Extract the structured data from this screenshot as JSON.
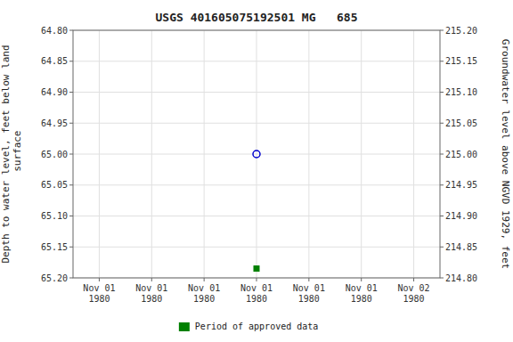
{
  "chart_data": {
    "type": "scatter",
    "title": "USGS 401605075192501 MG   685",
    "ylabel": "Depth to water level, feet below land\n surface",
    "y2label": "Groundwater level above NGVD 1929, feet",
    "categories": [
      "Nov 01\n1980",
      "Nov 01\n1980",
      "Nov 01\n1980",
      "Nov 01\n1980",
      "Nov 01\n1980",
      "Nov 01\n1980",
      "Nov 02\n1980"
    ],
    "series": [
      {
        "color": "#0000cc",
        "marker": "open-circle",
        "line_style": "none",
        "values": [
          null,
          null,
          null,
          65.0,
          null,
          null,
          null
        ]
      },
      {
        "name": "Period of approved data",
        "color": "#008000",
        "marker": "square",
        "line_style": "none",
        "values": [
          null,
          null,
          null,
          65.185,
          null,
          null,
          null
        ]
      }
    ],
    "ylim": [
      65.2,
      64.8
    ],
    "yticks": [
      {
        "value": 64.8,
        "label": "64.80"
      },
      {
        "value": 64.85,
        "label": "64.85"
      },
      {
        "value": 64.9,
        "label": "64.90"
      },
      {
        "value": 64.95,
        "label": "64.95"
      },
      {
        "value": 65.0,
        "label": "65.00"
      },
      {
        "value": 65.05,
        "label": "65.05"
      },
      {
        "value": 65.1,
        "label": "65.10"
      },
      {
        "value": 65.15,
        "label": "65.15"
      },
      {
        "value": 65.2,
        "label": "65.20"
      }
    ],
    "y2lim": [
      214.8,
      215.2
    ],
    "y2ticks": [
      {
        "value": 215.2,
        "label": "215.20"
      },
      {
        "value": 215.15,
        "label": "215.15"
      },
      {
        "value": 215.1,
        "label": "215.10"
      },
      {
        "value": 215.05,
        "label": "215.05"
      },
      {
        "value": 215.0,
        "label": "215.00"
      },
      {
        "value": 214.95,
        "label": "214.95"
      },
      {
        "value": 214.9,
        "label": "214.90"
      },
      {
        "value": 214.85,
        "label": "214.85"
      },
      {
        "value": 214.8,
        "label": "214.80"
      }
    ],
    "grid": true,
    "legend": "bottom"
  }
}
